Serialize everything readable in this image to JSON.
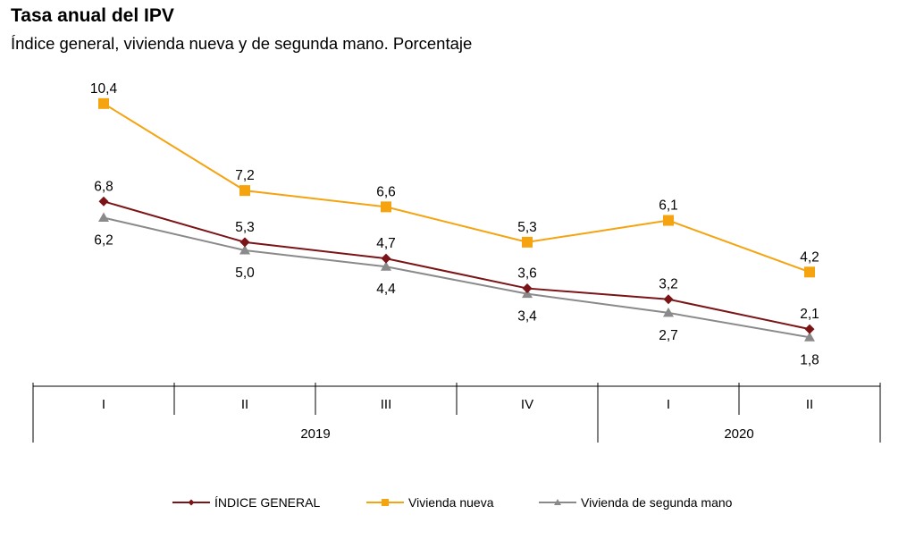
{
  "chart_data": {
    "type": "line",
    "title": "Tasa anual del IPV",
    "subtitle": "Índice general, vivienda nueva y de segunda mano. Porcentaje",
    "categories": [
      "I",
      "II",
      "III",
      "IV",
      "I",
      "II"
    ],
    "year_groups": [
      {
        "label": "2019",
        "quarters": 4
      },
      {
        "label": "2020",
        "quarters": 2
      }
    ],
    "ylim": [
      0,
      12
    ],
    "grid": false,
    "legend_position": "bottom",
    "series": [
      {
        "name": "ÍNDICE GENERAL",
        "marker": "diamond",
        "color": "#7b1416",
        "values": [
          6.8,
          5.3,
          4.7,
          3.6,
          3.2,
          2.1
        ],
        "labels": [
          "6,8",
          "5,3",
          "4,7",
          "3,6",
          "3,2",
          "2,1"
        ]
      },
      {
        "name": "Vivienda nueva",
        "marker": "square",
        "color": "#f5a30f",
        "values": [
          10.4,
          7.2,
          6.6,
          5.3,
          6.1,
          4.2
        ],
        "labels": [
          "10,4",
          "7,2",
          "6,6",
          "5,3",
          "6,1",
          "4,2"
        ]
      },
      {
        "name": "Vivienda de segunda mano",
        "marker": "triangle",
        "color": "#8a8a8a",
        "values": [
          6.2,
          5.0,
          4.4,
          3.4,
          2.7,
          1.8
        ],
        "labels": [
          "6,2",
          "5,0",
          "4,4",
          "3,4",
          "2,7",
          "1,8"
        ]
      }
    ]
  }
}
